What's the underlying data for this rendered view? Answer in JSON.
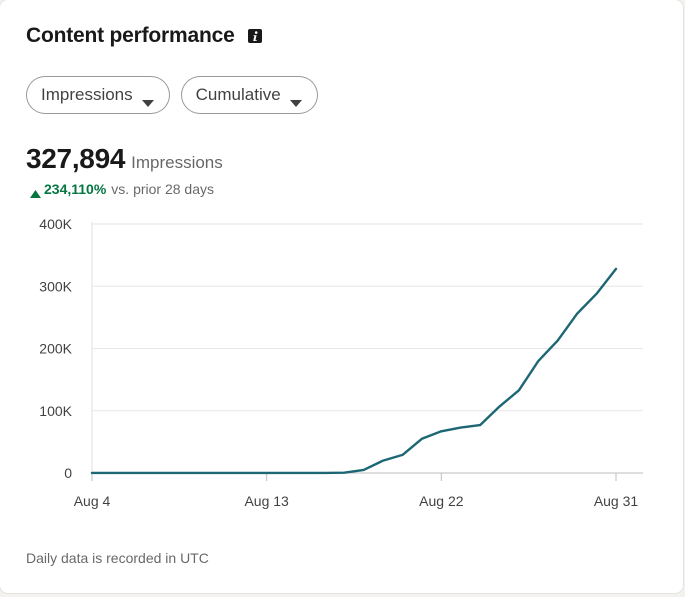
{
  "header": {
    "title": "Content performance",
    "info_icon": "info-icon"
  },
  "filters": {
    "metric_label": "Impressions",
    "mode_label": "Cumulative",
    "caret_icon": "caret-down-icon"
  },
  "summary": {
    "value": "327,894",
    "label": "Impressions",
    "change_pct": "234,110%",
    "change_note": "vs. prior 28 days",
    "change_icon": "triangle-up-icon",
    "change_color": "#057642"
  },
  "footer": {
    "note": "Daily data is recorded in UTC"
  },
  "colors": {
    "line": "#1d6775",
    "grid": "#e6e6e6"
  },
  "chart_data": {
    "type": "line",
    "x_tick_labels": [
      "Aug 4",
      "Aug 13",
      "Aug 22",
      "Aug 31"
    ],
    "y_tick_labels": [
      "0",
      "100K",
      "200K",
      "300K",
      "400K"
    ],
    "ylim": [
      0,
      400000
    ],
    "xlim": [
      "2024-08-04",
      "2024-08-31"
    ],
    "grid": true,
    "series": [
      {
        "x": [
          "2024-08-04",
          "2024-08-05",
          "2024-08-06",
          "2024-08-07",
          "2024-08-08",
          "2024-08-09",
          "2024-08-10",
          "2024-08-11",
          "2024-08-12",
          "2024-08-13",
          "2024-08-14",
          "2024-08-15",
          "2024-08-16",
          "2024-08-17",
          "2024-08-18",
          "2024-08-19",
          "2024-08-20",
          "2024-08-21",
          "2024-08-22",
          "2024-08-23",
          "2024-08-24",
          "2024-08-25",
          "2024-08-26",
          "2024-08-27",
          "2024-08-28",
          "2024-08-29",
          "2024-08-30",
          "2024-08-31"
        ],
        "values": [
          140,
          140,
          140,
          140,
          140,
          140,
          140,
          140,
          140,
          140,
          140,
          140,
          140,
          500,
          5000,
          20000,
          29000,
          55000,
          67000,
          73000,
          77000,
          107000,
          133000,
          180000,
          213000,
          256000,
          288000,
          327894
        ]
      }
    ]
  }
}
